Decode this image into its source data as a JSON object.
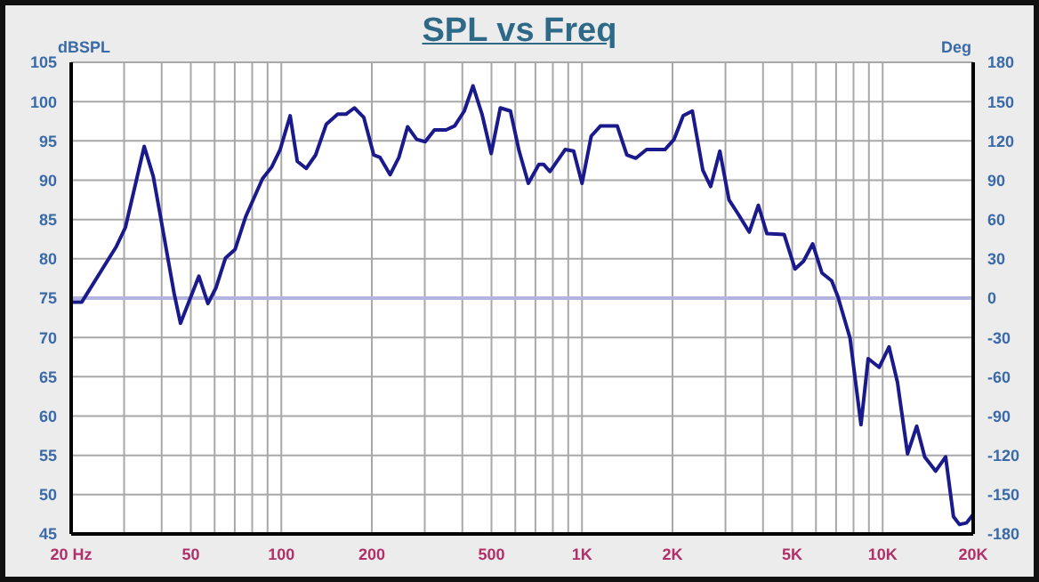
{
  "chart_data": {
    "type": "line",
    "title": "SPL vs Freq",
    "ylabel": "dBSPL",
    "y2label": "Deg",
    "log": "x",
    "grid": true,
    "marker": "none",
    "line_style": "solid",
    "xlim": [
      20,
      20000
    ],
    "xticks": [
      {
        "value": 20,
        "label": "20 Hz"
      },
      {
        "value": 30,
        "label": null
      },
      {
        "value": 40,
        "label": null
      },
      50,
      {
        "value": 60,
        "label": null
      },
      {
        "value": 70,
        "label": null
      },
      {
        "value": 80,
        "label": null
      },
      {
        "value": 90,
        "label": null
      },
      100,
      200,
      {
        "value": 300,
        "label": null
      },
      {
        "value": 400,
        "label": null
      },
      500,
      {
        "value": 600,
        "label": null
      },
      {
        "value": 700,
        "label": null
      },
      {
        "value": 800,
        "label": null
      },
      {
        "value": 900,
        "label": null
      },
      {
        "value": 1000,
        "label": "1K"
      },
      {
        "value": 2000,
        "label": "2K"
      },
      {
        "value": 3000,
        "label": null
      },
      {
        "value": 4000,
        "label": null
      },
      {
        "value": 5000,
        "label": "5K"
      },
      {
        "value": 6000,
        "label": null
      },
      {
        "value": 7000,
        "label": null
      },
      {
        "value": 8000,
        "label": null
      },
      {
        "value": 9000,
        "label": null
      },
      {
        "value": 10000,
        "label": "10K"
      },
      {
        "value": 20000,
        "label": "20K"
      }
    ],
    "ylim": [
      45,
      105
    ],
    "yticks": [
      45,
      50,
      55,
      60,
      65,
      70,
      75,
      80,
      85,
      90,
      95,
      100,
      105
    ],
    "y2lim": [
      -180,
      180
    ],
    "y2ticks": [
      -180,
      -150,
      -120,
      -90,
      -60,
      -30,
      0,
      30,
      60,
      90,
      120,
      150,
      180
    ],
    "ref_lines": [
      {
        "axis": "y2",
        "value": 0,
        "color": "#b4b4e0"
      }
    ],
    "x": [
      20,
      21.7,
      28.3,
      30.3,
      35,
      37.5,
      39.5,
      44,
      46.2,
      53.2,
      57,
      60.6,
      65.2,
      70.2,
      76,
      86.6,
      93,
      99.1,
      107,
      113,
      121,
      130,
      141,
      154,
      164,
      175,
      188,
      203,
      213,
      230,
      246,
      263,
      282,
      301,
      323,
      353,
      377,
      406,
      434,
      465,
      499,
      535,
      578,
      618,
      663,
      719,
      746,
      782,
      879,
      938,
      1000,
      1073,
      1151,
      1310,
      1410,
      1511,
      1640,
      1887,
      2024,
      2171,
      2328,
      2522,
      2679,
      2874,
      3083,
      3307,
      3600,
      3860,
      4122,
      4702,
      5112,
      5457,
      5852,
      6282,
      6767,
      7096,
      7790,
      8470,
      8950,
      9740,
      10500,
      11200,
      12100,
      12980,
      13800,
      15000,
      16200,
      17200,
      18000,
      19000,
      20000
    ],
    "series": [
      {
        "color": "#1a1a8c",
        "values": [
          74.5,
          74.5,
          81.6,
          84,
          94.3,
          90.5,
          85.7,
          75.6,
          71.8,
          77.8,
          74.3,
          76.3,
          80.1,
          81.2,
          85.3,
          90.2,
          91.7,
          93.9,
          98.2,
          92.4,
          91.5,
          93.2,
          97.1,
          98.4,
          98.4,
          99.2,
          98,
          93.2,
          92.9,
          90.7,
          92.9,
          96.8,
          95.2,
          94.9,
          96.4,
          96.4,
          96.9,
          98.8,
          102,
          98.4,
          93.4,
          99.2,
          98.8,
          93.7,
          89.6,
          92,
          92,
          91.1,
          93.9,
          93.7,
          89.6,
          95.6,
          96.9,
          96.9,
          93.2,
          92.8,
          93.9,
          93.9,
          95.2,
          98.2,
          98.8,
          91.3,
          89.2,
          93.7,
          87.5,
          85.7,
          83.4,
          86.8,
          83.2,
          83.1,
          78.7,
          79.7,
          81.9,
          78.2,
          77.2,
          75.2,
          69.9,
          58.9,
          67.3,
          66.2,
          68.8,
          64.3,
          55.2,
          58.7,
          54.8,
          53,
          54.8,
          47.2,
          46.2,
          46.4,
          47.5
        ]
      }
    ]
  }
}
